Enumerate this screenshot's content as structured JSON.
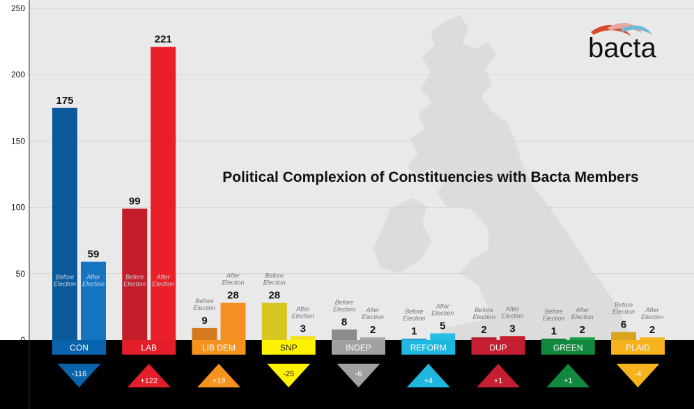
{
  "chart_data": {
    "type": "bar",
    "title": "Political Complexion of Constituencies with Bacta Members",
    "ylim": [
      0,
      250
    ],
    "yticks": [
      0,
      50,
      100,
      150,
      200,
      250
    ],
    "grid": true,
    "phase_labels": {
      "before": [
        "Before",
        "Election"
      ],
      "after": [
        "After",
        "Election"
      ]
    },
    "categories": [
      "CON",
      "LAB",
      "LIB DEM",
      "SNP",
      "INDEP",
      "REFORM",
      "DUP",
      "GREEN",
      "PLAID"
    ],
    "series": [
      {
        "values": [
          175,
          99,
          9,
          28,
          8,
          1,
          2,
          1,
          6
        ]
      },
      {
        "values": [
          59,
          221,
          28,
          3,
          2,
          5,
          3,
          2,
          2
        ]
      }
    ],
    "change": [
      "-116",
      "+122",
      "+19",
      "-25",
      "-6",
      "+4",
      "+1",
      "+1",
      "-4"
    ],
    "colors": {
      "before": [
        "#0a5a9c",
        "#c41e2a",
        "#d4791c",
        "#d9c721",
        "#8c8c8c",
        "#1aa0cf",
        "#b51f2f",
        "#0e7f36",
        "#d9a51b"
      ],
      "after": [
        "#1575c1",
        "#ea2029",
        "#f58f23",
        "#f3e31a",
        "#a7a7a7",
        "#24bde6",
        "#c91d2d",
        "#15a046",
        "#f3b721"
      ],
      "label_bg": [
        "#0a64ad",
        "#e31e2a",
        "#f6921e",
        "#fff200",
        "#a0a0a0",
        "#1fb7e0",
        "#c41e32",
        "#12873e",
        "#f5b21c"
      ],
      "label_text": [
        "#ffffff",
        "#ffffff",
        "#ffffff",
        "#222222",
        "#ffffff",
        "#ffffff",
        "#ffffff",
        "#ffffff",
        "#ffffff"
      ]
    }
  },
  "logo": {
    "text": "bacta"
  }
}
